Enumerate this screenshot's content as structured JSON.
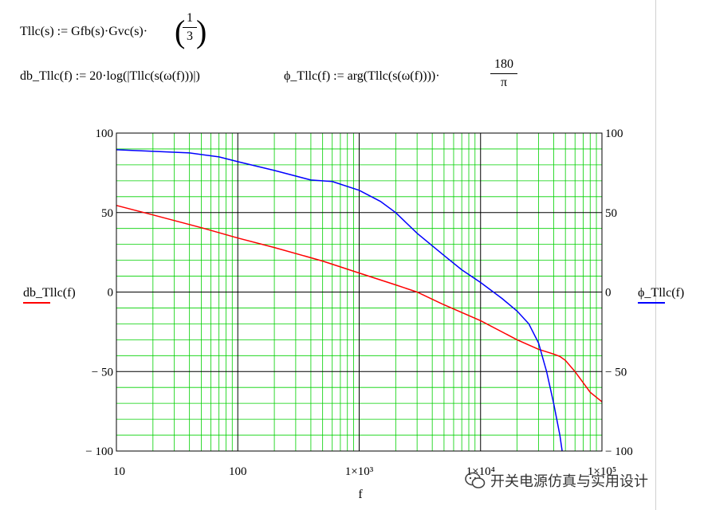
{
  "formulas": {
    "line1_lhs": "Tllc(s)",
    "line1_assign": ":=",
    "line1_rhs": "Gfb(s)·Gvc(s)·",
    "line1_frac_num": "1",
    "line1_frac_den": "3",
    "line2_lhs": "db_Tllc(f)",
    "line2_assign": ":=",
    "line2_rhs": "20·log(|Tllc(s(ω(f)))|)",
    "line3_lhs": "ϕ_Tllc(f)",
    "line3_assign": ":=",
    "line3_rhs": "arg(Tllc(s(ω(f))))·",
    "line3_frac_num": "180",
    "line3_frac_den": "π"
  },
  "colors": {
    "grid_major": "#000000",
    "grid_minor": "#00d000",
    "db_series": "#ff0000",
    "phase_series": "#0000ff"
  },
  "chart_data": {
    "type": "line",
    "xscale": "log",
    "xlim": [
      10,
      100000
    ],
    "ylim_left": [
      -100,
      100
    ],
    "ylim_right": [
      -100,
      100
    ],
    "xlabel": "f",
    "ylabel_left": "db_Tllc(f)",
    "ylabel_right": "ϕ_Tllc(f)",
    "x_ticks": [
      {
        "value": 10,
        "label": "10"
      },
      {
        "value": 100,
        "label": "100"
      },
      {
        "value": 1000,
        "label": "1×10³"
      },
      {
        "value": 10000,
        "label": "1×10⁴"
      },
      {
        "value": 100000,
        "label": "1×10⁵"
      }
    ],
    "y_ticks_left": [
      {
        "value": 100,
        "label": "100"
      },
      {
        "value": 50,
        "label": "50"
      },
      {
        "value": 0,
        "label": "0"
      },
      {
        "value": -50,
        "label": "− 50"
      },
      {
        "value": -100,
        "label": "− 100"
      }
    ],
    "y_ticks_right": [
      {
        "value": 100,
        "label": "100"
      },
      {
        "value": 50,
        "label": "50"
      },
      {
        "value": 0,
        "label": "0"
      },
      {
        "value": -50,
        "label": "− 50"
      },
      {
        "value": -100,
        "label": "− 100"
      }
    ],
    "grid": true,
    "series": [
      {
        "name": "db_Tllc(f)",
        "axis": "left",
        "color": "#ff0000",
        "points": [
          [
            10,
            54.5
          ],
          [
            20,
            48.5
          ],
          [
            50,
            40.5
          ],
          [
            100,
            34
          ],
          [
            200,
            28
          ],
          [
            500,
            19.5
          ],
          [
            1000,
            12
          ],
          [
            2000,
            4.5
          ],
          [
            3000,
            0
          ],
          [
            5000,
            -8
          ],
          [
            10000,
            -18
          ],
          [
            20000,
            -30
          ],
          [
            30000,
            -36
          ],
          [
            40000,
            -39
          ],
          [
            45000,
            -40.5
          ],
          [
            50000,
            -43
          ],
          [
            60000,
            -50
          ],
          [
            70000,
            -57
          ],
          [
            80000,
            -63
          ],
          [
            100000,
            -69
          ]
        ]
      },
      {
        "name": "ϕ_Tllc(f)",
        "axis": "right",
        "color": "#0000ff",
        "points": [
          [
            10,
            89.5
          ],
          [
            20,
            88.5
          ],
          [
            40,
            87.5
          ],
          [
            70,
            85
          ],
          [
            100,
            82
          ],
          [
            200,
            76.5
          ],
          [
            400,
            70.5
          ],
          [
            600,
            69.5
          ],
          [
            1000,
            64
          ],
          [
            1500,
            57
          ],
          [
            2000,
            50
          ],
          [
            3000,
            37
          ],
          [
            5000,
            23
          ],
          [
            7000,
            14
          ],
          [
            10000,
            6
          ],
          [
            15000,
            -4
          ],
          [
            20000,
            -12
          ],
          [
            25000,
            -20
          ],
          [
            30000,
            -32
          ],
          [
            35000,
            -50
          ],
          [
            40000,
            -70
          ],
          [
            45000,
            -90
          ],
          [
            47000,
            -100
          ]
        ]
      }
    ]
  },
  "watermark": {
    "text": "开关电源仿真与实用设计"
  }
}
